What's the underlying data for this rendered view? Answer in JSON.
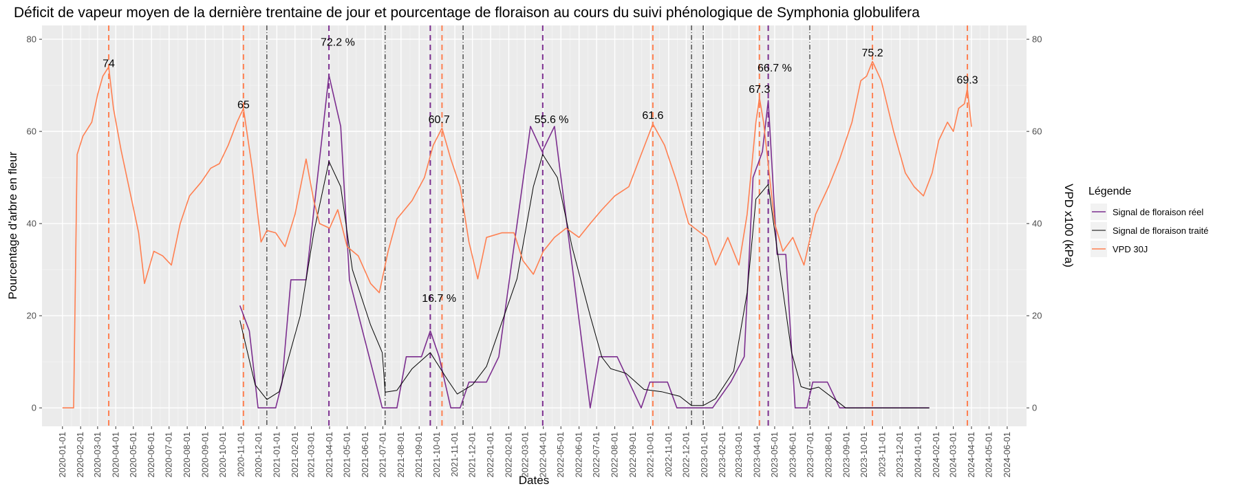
{
  "chart_data": {
    "type": "line",
    "title": "Déficit de vapeur moyen de la dernière trentaine de jour et pourcentage de floraison au cours du suivi phénologique de Symphonia globulifera",
    "xlabel": "Dates",
    "ylabel": "Pourcentage d'arbre en fleur",
    "y2label": "VPD x100 (kPa)",
    "ylim": [
      -4,
      83
    ],
    "yticks": [
      0,
      20,
      40,
      60,
      80
    ],
    "xticks": [
      "2020-01-01",
      "2020-02-01",
      "2020-03-01",
      "2020-04-01",
      "2020-05-01",
      "2020-06-01",
      "2020-07-01",
      "2020-08-01",
      "2020-09-01",
      "2020-10-01",
      "2020-11-01",
      "2020-12-01",
      "2021-01-01",
      "2021-02-01",
      "2021-03-01",
      "2021-04-01",
      "2021-05-01",
      "2021-06-01",
      "2021-07-01",
      "2021-08-01",
      "2021-09-01",
      "2021-10-01",
      "2021-11-01",
      "2021-12-01",
      "2022-01-01",
      "2022-02-01",
      "2022-03-01",
      "2022-04-01",
      "2022-05-01",
      "2022-06-01",
      "2022-07-01",
      "2022-08-01",
      "2022-09-01",
      "2022-10-01",
      "2022-11-01",
      "2022-12-01",
      "2023-01-01",
      "2023-02-01",
      "2023-03-01",
      "2023-04-01",
      "2023-05-01",
      "2023-06-01",
      "2023-07-01",
      "2023-08-01",
      "2023-09-01",
      "2023-10-01",
      "2023-11-01",
      "2023-12-01",
      "2024-01-01",
      "2024-02-01",
      "2024-03-01",
      "2024-04-01",
      "2024-05-01",
      "2024-06-01"
    ],
    "grid": true,
    "legend_position": "right",
    "legend_title": "Légende",
    "series": [
      {
        "name": "Signal de floraison réel",
        "color": "#7B2D8E",
        "points": [
          [
            "2020-10-30",
            22.2
          ],
          [
            "2020-11-15",
            16.7
          ],
          [
            "2020-11-30",
            0
          ],
          [
            "2020-12-30",
            0
          ],
          [
            "2021-01-10",
            5.6
          ],
          [
            "2021-01-25",
            27.8
          ],
          [
            "2021-02-20",
            27.8
          ],
          [
            "2021-03-31",
            72.2
          ],
          [
            "2021-04-20",
            61.1
          ],
          [
            "2021-05-05",
            27.8
          ],
          [
            "2021-06-30",
            0
          ],
          [
            "2021-07-25",
            0
          ],
          [
            "2021-08-10",
            11.1
          ],
          [
            "2021-09-05",
            11.1
          ],
          [
            "2021-09-20",
            16.7
          ],
          [
            "2021-10-05",
            11.1
          ],
          [
            "2021-10-25",
            0
          ],
          [
            "2021-11-10",
            0
          ],
          [
            "2021-11-25",
            5.6
          ],
          [
            "2021-12-25",
            5.6
          ],
          [
            "2022-01-15",
            11.1
          ],
          [
            "2022-03-10",
            61.1
          ],
          [
            "2022-03-30",
            55.6
          ],
          [
            "2022-04-20",
            61.1
          ],
          [
            "2022-06-20",
            0
          ],
          [
            "2022-07-05",
            11.1
          ],
          [
            "2022-08-05",
            11.1
          ],
          [
            "2022-09-15",
            0
          ],
          [
            "2022-09-30",
            5.6
          ],
          [
            "2022-10-30",
            5.6
          ],
          [
            "2022-11-15",
            0
          ],
          [
            "2022-12-15",
            0
          ],
          [
            "2023-01-15",
            0
          ],
          [
            "2023-02-15",
            5.6
          ],
          [
            "2023-03-10",
            11.1
          ],
          [
            "2023-03-25",
            50
          ],
          [
            "2023-04-10",
            55.6
          ],
          [
            "2023-04-20",
            66.7
          ],
          [
            "2023-05-05",
            33.3
          ],
          [
            "2023-05-20",
            33.3
          ],
          [
            "2023-06-05",
            0
          ],
          [
            "2023-06-25",
            0
          ],
          [
            "2023-07-05",
            5.6
          ],
          [
            "2023-07-30",
            5.6
          ],
          [
            "2023-08-20",
            0
          ],
          [
            "2024-01-20",
            0
          ]
        ]
      },
      {
        "name": "Signal de floraison traité",
        "color": "#000000",
        "points": [
          [
            "2020-10-30",
            19
          ],
          [
            "2020-11-25",
            5
          ],
          [
            "2020-12-15",
            1.8
          ],
          [
            "2021-01-05",
            3.5
          ],
          [
            "2021-02-10",
            20
          ],
          [
            "2021-03-05",
            38
          ],
          [
            "2021-03-31",
            53.5
          ],
          [
            "2021-04-20",
            48
          ],
          [
            "2021-05-10",
            30
          ],
          [
            "2021-06-10",
            18
          ],
          [
            "2021-06-30",
            12
          ],
          [
            "2021-07-05",
            3.4
          ],
          [
            "2021-07-25",
            3.8
          ],
          [
            "2021-08-20",
            8.5
          ],
          [
            "2021-09-20",
            12
          ],
          [
            "2021-10-20",
            6
          ],
          [
            "2021-11-05",
            3
          ],
          [
            "2021-12-01",
            5
          ],
          [
            "2021-12-25",
            9
          ],
          [
            "2022-02-15",
            28
          ],
          [
            "2022-03-15",
            48
          ],
          [
            "2022-03-31",
            55
          ],
          [
            "2022-04-25",
            50
          ],
          [
            "2022-05-20",
            35
          ],
          [
            "2022-06-20",
            20
          ],
          [
            "2022-07-10",
            11
          ],
          [
            "2022-07-25",
            8.5
          ],
          [
            "2022-08-20",
            7.5
          ],
          [
            "2022-09-20",
            4
          ],
          [
            "2022-10-20",
            3.5
          ],
          [
            "2022-11-20",
            2.5
          ],
          [
            "2022-12-10",
            0.5
          ],
          [
            "2022-12-30",
            0.5
          ],
          [
            "2023-01-20",
            2
          ],
          [
            "2023-02-20",
            8
          ],
          [
            "2023-03-15",
            25
          ],
          [
            "2023-03-30",
            45.3
          ],
          [
            "2023-04-20",
            48.5
          ],
          [
            "2023-05-10",
            30
          ],
          [
            "2023-05-30",
            12
          ],
          [
            "2023-06-15",
            4.6
          ],
          [
            "2023-06-30",
            4
          ],
          [
            "2023-07-15",
            4.5
          ],
          [
            "2023-08-10",
            2
          ],
          [
            "2023-08-30",
            0
          ],
          [
            "2024-01-20",
            0
          ]
        ]
      },
      {
        "name": "VPD 30J",
        "color": "#FF7F50",
        "points": [
          [
            "2020-01-01",
            0
          ],
          [
            "2020-01-20",
            0
          ],
          [
            "2020-01-26",
            55
          ],
          [
            "2020-02-05",
            59
          ],
          [
            "2020-02-20",
            62
          ],
          [
            "2020-03-01",
            68
          ],
          [
            "2020-03-10",
            72
          ],
          [
            "2020-03-20",
            74
          ],
          [
            "2020-03-28",
            65
          ],
          [
            "2020-04-10",
            56
          ],
          [
            "2020-04-25",
            47
          ],
          [
            "2020-05-10",
            38
          ],
          [
            "2020-05-20",
            27
          ],
          [
            "2020-06-05",
            34
          ],
          [
            "2020-06-20",
            33
          ],
          [
            "2020-07-05",
            31
          ],
          [
            "2020-07-20",
            40
          ],
          [
            "2020-08-05",
            46
          ],
          [
            "2020-08-25",
            49
          ],
          [
            "2020-09-10",
            52
          ],
          [
            "2020-09-25",
            53
          ],
          [
            "2020-10-10",
            57
          ],
          [
            "2020-10-25",
            62
          ],
          [
            "2020-11-05",
            65
          ],
          [
            "2020-11-20",
            52
          ],
          [
            "2020-12-05",
            36
          ],
          [
            "2020-12-15",
            38.5
          ],
          [
            "2020-12-30",
            38
          ],
          [
            "2021-01-15",
            35
          ],
          [
            "2021-02-01",
            42
          ],
          [
            "2021-02-20",
            54
          ],
          [
            "2021-03-05",
            45
          ],
          [
            "2021-03-15",
            40
          ],
          [
            "2021-04-01",
            39
          ],
          [
            "2021-04-15",
            43
          ],
          [
            "2021-05-01",
            35
          ],
          [
            "2021-05-20",
            33
          ],
          [
            "2021-06-10",
            27
          ],
          [
            "2021-06-25",
            25
          ],
          [
            "2021-07-10",
            34
          ],
          [
            "2021-07-25",
            41
          ],
          [
            "2021-08-20",
            45
          ],
          [
            "2021-09-10",
            50
          ],
          [
            "2021-09-25",
            57
          ],
          [
            "2021-10-10",
            60.7
          ],
          [
            "2021-10-25",
            54
          ],
          [
            "2021-11-10",
            48
          ],
          [
            "2021-11-25",
            36
          ],
          [
            "2021-12-10",
            28
          ],
          [
            "2021-12-25",
            37
          ],
          [
            "2022-01-20",
            38
          ],
          [
            "2022-02-10",
            38
          ],
          [
            "2022-02-25",
            32
          ],
          [
            "2022-03-15",
            29
          ],
          [
            "2022-04-01",
            34
          ],
          [
            "2022-04-20",
            37
          ],
          [
            "2022-05-10",
            39
          ],
          [
            "2022-06-01",
            37
          ],
          [
            "2022-06-20",
            40
          ],
          [
            "2022-07-10",
            43
          ],
          [
            "2022-08-01",
            46
          ],
          [
            "2022-08-25",
            48
          ],
          [
            "2022-09-15",
            55
          ],
          [
            "2022-10-05",
            61.6
          ],
          [
            "2022-10-25",
            57
          ],
          [
            "2022-11-15",
            49
          ],
          [
            "2022-12-05",
            40
          ],
          [
            "2023-01-05",
            37
          ],
          [
            "2023-01-20",
            31
          ],
          [
            "2023-02-10",
            37
          ],
          [
            "2023-03-01",
            31
          ],
          [
            "2023-03-15",
            42
          ],
          [
            "2023-03-30",
            62
          ],
          [
            "2023-04-05",
            67.3
          ],
          [
            "2023-04-12",
            62
          ],
          [
            "2023-05-01",
            40
          ],
          [
            "2023-05-15",
            34
          ],
          [
            "2023-06-01",
            37
          ],
          [
            "2023-06-20",
            31
          ],
          [
            "2023-07-10",
            42
          ],
          [
            "2023-08-01",
            48
          ],
          [
            "2023-08-20",
            54
          ],
          [
            "2023-09-10",
            62
          ],
          [
            "2023-09-25",
            71
          ],
          [
            "2023-10-05",
            72
          ],
          [
            "2023-10-15",
            75.2
          ],
          [
            "2023-10-30",
            71
          ],
          [
            "2023-11-20",
            60
          ],
          [
            "2023-12-10",
            51
          ],
          [
            "2023-12-25",
            48
          ],
          [
            "2024-01-10",
            46
          ],
          [
            "2024-01-25",
            51
          ],
          [
            "2024-02-05",
            58
          ],
          [
            "2024-02-20",
            62
          ],
          [
            "2024-03-01",
            60
          ],
          [
            "2024-03-10",
            65
          ],
          [
            "2024-03-20",
            66
          ],
          [
            "2024-03-25",
            69.3
          ],
          [
            "2024-04-01",
            61
          ]
        ]
      }
    ],
    "vlines": [
      {
        "date": "2020-03-20",
        "color": "#FF7F50",
        "style": "dashed"
      },
      {
        "date": "2020-11-05",
        "color": "#FF7F50",
        "style": "dashed"
      },
      {
        "date": "2021-03-31",
        "color": "#7B2D8E",
        "style": "dashed"
      },
      {
        "date": "2021-09-20",
        "color": "#7B2D8E",
        "style": "dashed"
      },
      {
        "date": "2021-10-10",
        "color": "#FF7F50",
        "style": "dashed"
      },
      {
        "date": "2022-03-31",
        "color": "#7B2D8E",
        "style": "dashed"
      },
      {
        "date": "2022-10-05",
        "color": "#FF7F50",
        "style": "dashed"
      },
      {
        "date": "2023-04-05",
        "color": "#FF7F50",
        "style": "dashed"
      },
      {
        "date": "2023-04-20",
        "color": "#7B2D8E",
        "style": "dashed"
      },
      {
        "date": "2023-10-15",
        "color": "#FF7F50",
        "style": "dashed"
      },
      {
        "date": "2024-03-25",
        "color": "#FF7F50",
        "style": "dashed"
      },
      {
        "date": "2020-12-15",
        "color": "#000000",
        "style": "dotdash"
      },
      {
        "date": "2021-07-05",
        "color": "#000000",
        "style": "dotdash"
      },
      {
        "date": "2021-11-15",
        "color": "#000000",
        "style": "dotdash"
      },
      {
        "date": "2022-12-10",
        "color": "#000000",
        "style": "dotdash"
      },
      {
        "date": "2022-12-30",
        "color": "#000000",
        "style": "dotdash"
      },
      {
        "date": "2023-06-30",
        "color": "#000000",
        "style": "dotdash"
      }
    ],
    "annotations": [
      {
        "date": "2020-03-20",
        "y": 74,
        "text": "74"
      },
      {
        "date": "2020-11-05",
        "y": 65,
        "text": "65"
      },
      {
        "date": "2021-04-15",
        "y": 78.6,
        "text": "72.2 %"
      },
      {
        "date": "2021-10-05",
        "y": 61.8,
        "text": "60.7"
      },
      {
        "date": "2021-10-05",
        "y": 23,
        "text": "16.7 %"
      },
      {
        "date": "2022-04-15",
        "y": 61.8,
        "text": "55.6 %"
      },
      {
        "date": "2022-10-05",
        "y": 62.7,
        "text": "61.6"
      },
      {
        "date": "2023-04-05",
        "y": 68.4,
        "text": "67.3"
      },
      {
        "date": "2023-05-01",
        "y": 73,
        "text": "66.7 %"
      },
      {
        "date": "2023-10-15",
        "y": 76.3,
        "text": "75.2"
      },
      {
        "date": "2024-03-25",
        "y": 70.4,
        "text": "69.3"
      }
    ]
  }
}
